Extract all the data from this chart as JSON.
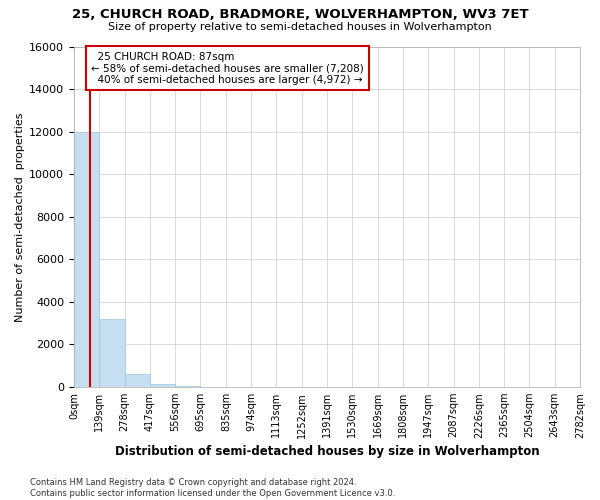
{
  "title1": "25, CHURCH ROAD, BRADMORE, WOLVERHAMPTON, WV3 7ET",
  "title2": "Size of property relative to semi-detached houses in Wolverhampton",
  "xlabel": "Distribution of semi-detached houses by size in Wolverhampton",
  "ylabel": "Number of semi-detached  properties",
  "footnote": "Contains HM Land Registry data © Crown copyright and database right 2024.\nContains public sector information licensed under the Open Government Licence v3.0.",
  "bar_color": "#c6dff0",
  "bar_edge_color": "#a0c4e0",
  "property_size": 87,
  "property_label": "25 CHURCH ROAD: 87sqm",
  "pct_smaller": 58,
  "pct_larger": 40,
  "n_smaller": 7208,
  "n_larger": 4972,
  "annotation_color": "#cc0000",
  "ylim": [
    0,
    16000
  ],
  "yticks": [
    0,
    2000,
    4000,
    6000,
    8000,
    10000,
    12000,
    14000,
    16000
  ],
  "bin_edges": [
    0,
    139,
    278,
    417,
    556,
    695,
    835,
    974,
    1113,
    1252,
    1391,
    1530,
    1669,
    1808,
    1947,
    2087,
    2226,
    2365,
    2504,
    2643,
    2782
  ],
  "bin_labels": [
    "0sqm",
    "139sqm",
    "278sqm",
    "417sqm",
    "556sqm",
    "695sqm",
    "835sqm",
    "974sqm",
    "1113sqm",
    "1252sqm",
    "1391sqm",
    "1530sqm",
    "1669sqm",
    "1808sqm",
    "1947sqm",
    "2087sqm",
    "2226sqm",
    "2365sqm",
    "2504sqm",
    "2643sqm",
    "2782sqm"
  ],
  "bar_heights": [
    12000,
    3200,
    620,
    130,
    50,
    22,
    12,
    8,
    5,
    4,
    3,
    2,
    2,
    2,
    1,
    1,
    1,
    0,
    0,
    0
  ],
  "fig_width": 6.0,
  "fig_height": 5.0
}
